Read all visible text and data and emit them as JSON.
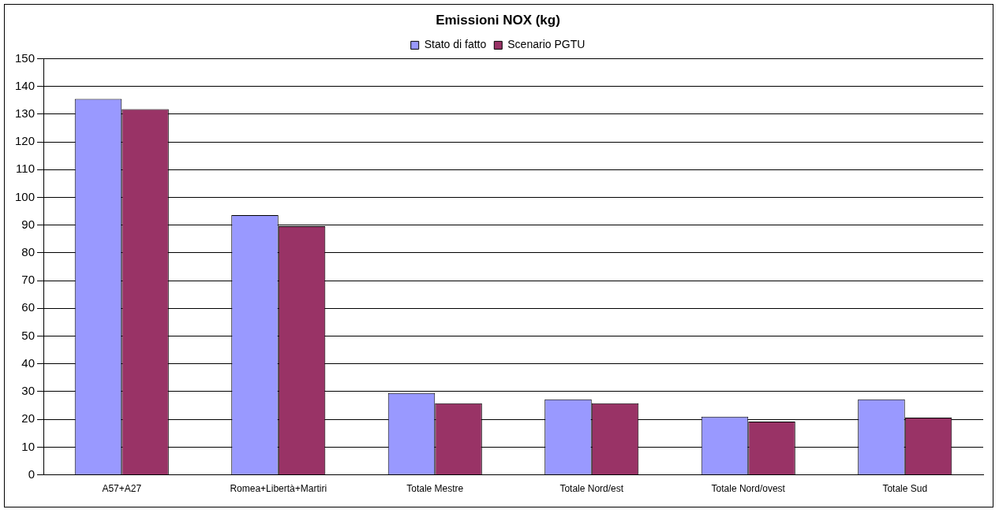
{
  "chart_data": {
    "type": "bar",
    "title": "Emissioni NOX (kg)",
    "categories": [
      "A57+A27",
      "Romea+Libertà+Martiri",
      "Totale Mestre",
      "Totale Nord/est",
      "Totale Nord/ovest",
      "Totale Sud"
    ],
    "series": [
      {
        "name": "Stato di fatto",
        "color": "#9999ff",
        "values": [
          135.5,
          93.6,
          29.5,
          27.2,
          21,
          27.2
        ]
      },
      {
        "name": "Scenario PGTU",
        "color": "#993366",
        "values": [
          131.8,
          89.6,
          25.8,
          25.8,
          19.2,
          20.6
        ]
      }
    ],
    "ylim": [
      0,
      150
    ],
    "yticks": [
      0,
      10,
      20,
      30,
      40,
      50,
      60,
      70,
      80,
      90,
      100,
      110,
      120,
      130,
      140,
      150
    ],
    "grid": "y",
    "legend": "top right"
  }
}
